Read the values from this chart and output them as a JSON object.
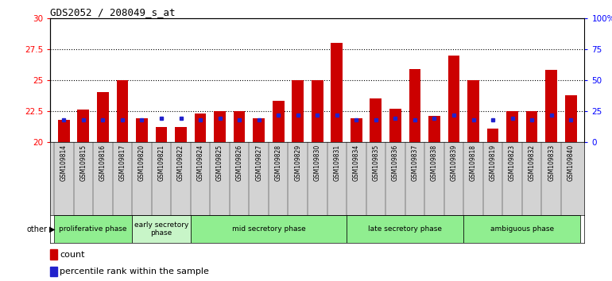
{
  "title": "GDS2052 / 208049_s_at",
  "samples": [
    "GSM109814",
    "GSM109815",
    "GSM109816",
    "GSM109817",
    "GSM109820",
    "GSM109821",
    "GSM109822",
    "GSM109824",
    "GSM109825",
    "GSM109826",
    "GSM109827",
    "GSM109828",
    "GSM109829",
    "GSM109830",
    "GSM109831",
    "GSM109834",
    "GSM109835",
    "GSM109836",
    "GSM109837",
    "GSM109838",
    "GSM109839",
    "GSM109818",
    "GSM109819",
    "GSM109823",
    "GSM109832",
    "GSM109833",
    "GSM109840"
  ],
  "count_values": [
    21.8,
    22.6,
    24.0,
    25.0,
    21.9,
    21.2,
    21.2,
    22.3,
    22.5,
    22.5,
    21.9,
    23.3,
    25.0,
    25.0,
    28.0,
    21.9,
    23.5,
    22.7,
    25.9,
    22.1,
    27.0,
    25.0,
    21.1,
    22.5,
    22.5,
    25.8,
    23.8
  ],
  "percentile_values": [
    18,
    18,
    18,
    18,
    18,
    19,
    19,
    18,
    19,
    18,
    18,
    22,
    22,
    22,
    22,
    18,
    18,
    19,
    18,
    19,
    22,
    18,
    18,
    19,
    18,
    22,
    18
  ],
  "phases": [
    {
      "name": "proliferative phase",
      "start": 0,
      "end": 3,
      "color": "#90EE90"
    },
    {
      "name": "early secretory\nphase",
      "start": 4,
      "end": 6,
      "color": "#c8f5c8"
    },
    {
      "name": "mid secretory phase",
      "start": 7,
      "end": 14,
      "color": "#90EE90"
    },
    {
      "name": "late secretory phase",
      "start": 15,
      "end": 20,
      "color": "#90EE90"
    },
    {
      "name": "ambiguous phase",
      "start": 21,
      "end": 26,
      "color": "#90EE90"
    }
  ],
  "ylim_left": [
    20,
    30
  ],
  "ylim_right": [
    0,
    100
  ],
  "yticks_left": [
    20,
    22.5,
    25,
    27.5,
    30
  ],
  "yticks_right": [
    0,
    25,
    50,
    75,
    100
  ],
  "bar_color": "#cc0000",
  "dot_color": "#2222cc",
  "plot_bg": "#ffffff",
  "tick_bg": "#d3d3d3"
}
